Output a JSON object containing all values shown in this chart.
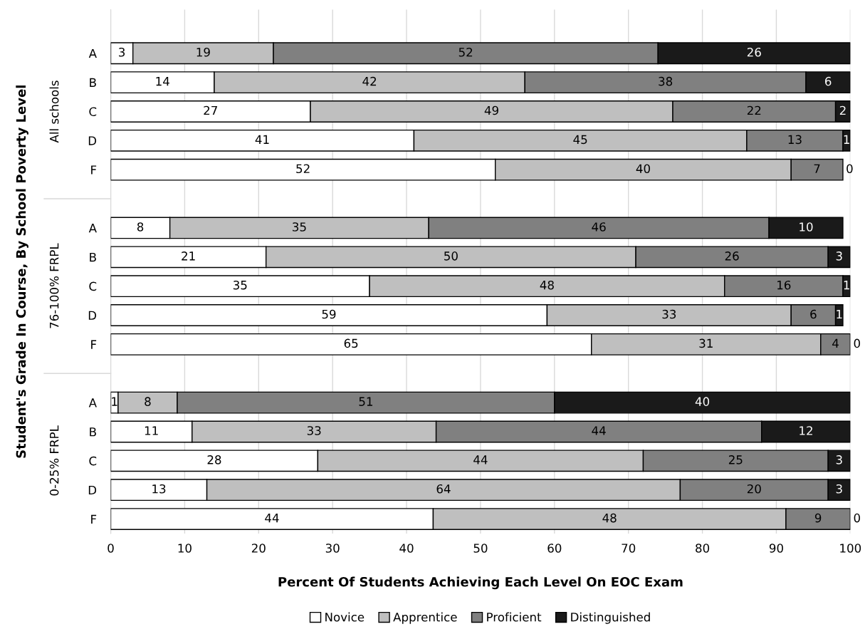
{
  "chart_data": {
    "type": "bar",
    "orientation": "horizontal",
    "stacked": true,
    "xlabel": "Percent Of Students Achieving Each Level On EOC Exam",
    "ylabel": "Student's Grade In Course, By School Poverty Level",
    "categories": [
      null,
      "A",
      "B",
      "C",
      "D",
      "F",
      null,
      "A",
      "B",
      "C",
      "D",
      "F",
      null,
      "A",
      "B",
      "C",
      "D",
      "F"
    ],
    "annotations": [
      "All schools",
      "76-100% FRPL",
      "0-25% FRPL"
    ],
    "series": [
      {
        "name": "Novice",
        "color": "#ffffff",
        "values": [
          null,
          3,
          14,
          27,
          41,
          52,
          null,
          8,
          21,
          35,
          59,
          65,
          null,
          1,
          11,
          28,
          13,
          43.6
        ],
        "value_labels": [
          null,
          "3",
          "14",
          "27",
          "41",
          "52",
          null,
          "8",
          "21",
          "35",
          "59",
          "65",
          null,
          "1",
          "11",
          "28",
          "13",
          "44"
        ]
      },
      {
        "name": "Apprentice",
        "color": "#bfbfbf",
        "values": [
          null,
          19,
          42,
          49,
          45,
          40,
          null,
          35,
          50,
          48,
          33,
          31,
          null,
          8,
          33,
          44,
          64,
          47.7
        ],
        "value_labels": [
          null,
          "19",
          "42",
          "49",
          "45",
          "40",
          null,
          "35",
          "50",
          "48",
          "33",
          "31",
          null,
          "8",
          "33",
          "44",
          "64",
          "48"
        ]
      },
      {
        "name": "Proficient",
        "color": "#808080",
        "values": [
          null,
          52,
          38,
          22,
          13,
          7,
          null,
          46,
          26,
          16,
          6,
          4,
          null,
          51,
          44,
          25,
          20,
          8.7
        ],
        "value_labels": [
          null,
          "52",
          "38",
          "22",
          "13",
          "7",
          null,
          "46",
          "26",
          "16",
          "6",
          "4",
          null,
          "51",
          "44",
          "25",
          "20",
          "9"
        ]
      },
      {
        "name": "Distinguished",
        "color": "#1a1a1a",
        "values": [
          null,
          26,
          6,
          2,
          1,
          0,
          null,
          10,
          3,
          1,
          1,
          0,
          null,
          40,
          12,
          3,
          3,
          0
        ],
        "value_labels": [
          null,
          "26",
          "6",
          "2",
          "1",
          "0",
          null,
          "10",
          "3",
          "1",
          "1",
          "0",
          null,
          "40",
          "12",
          "3",
          "3",
          "0"
        ]
      }
    ],
    "xlim": [
      0,
      100
    ],
    "xticks": [
      0,
      10,
      20,
      30,
      40,
      50,
      60,
      70,
      80,
      90,
      100
    ],
    "grid": "x",
    "legend": "bottom"
  }
}
